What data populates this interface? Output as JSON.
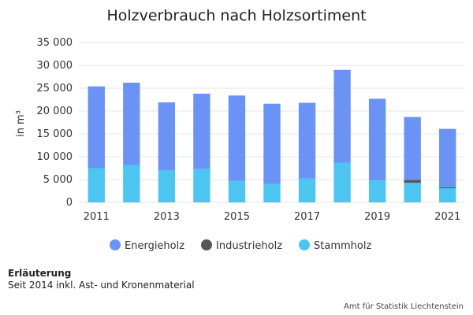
{
  "chart_data": {
    "type": "bar",
    "stacked": true,
    "title": "Holzverbrauch nach Holzsortiment",
    "ylabel": "in m³",
    "ylim": [
      0,
      35000
    ],
    "yticks": [
      0,
      5000,
      10000,
      15000,
      20000,
      25000,
      30000,
      35000
    ],
    "ytick_labels": [
      "0",
      "5 000",
      "10 000",
      "15 000",
      "20 000",
      "25 000",
      "30 000",
      "35 000"
    ],
    "categories": [
      "2011",
      "2012",
      "2013",
      "2014",
      "2015",
      "2016",
      "2017",
      "2018",
      "2019",
      "2020",
      "2021"
    ],
    "xtick_labels": [
      "2011",
      "2013",
      "2015",
      "2017",
      "2019",
      "2021"
    ],
    "grid": true,
    "legend_position": "bottom",
    "series": [
      {
        "name": "Stammholz",
        "color": "#4cc6f0",
        "values": [
          7500,
          8200,
          7000,
          7300,
          4700,
          4000,
          5200,
          8700,
          4800,
          4300,
          3100
        ]
      },
      {
        "name": "Industrieholz",
        "color": "#555555",
        "values": [
          0,
          0,
          0,
          0,
          0,
          0,
          0,
          0,
          0,
          600,
          200
        ]
      },
      {
        "name": "Energieholz",
        "color": "#6b93f5",
        "values": [
          17900,
          18000,
          14900,
          16500,
          18700,
          17600,
          16600,
          20300,
          17900,
          13800,
          12800
        ]
      }
    ],
    "legend_order": [
      "Energieholz",
      "Industrieholz",
      "Stammholz"
    ]
  },
  "footnote": {
    "title": "Erläuterung",
    "text": "Seit 2014 inkl. Ast- und Kronenmaterial"
  },
  "source": "Amt für Statistik Liechtenstein"
}
